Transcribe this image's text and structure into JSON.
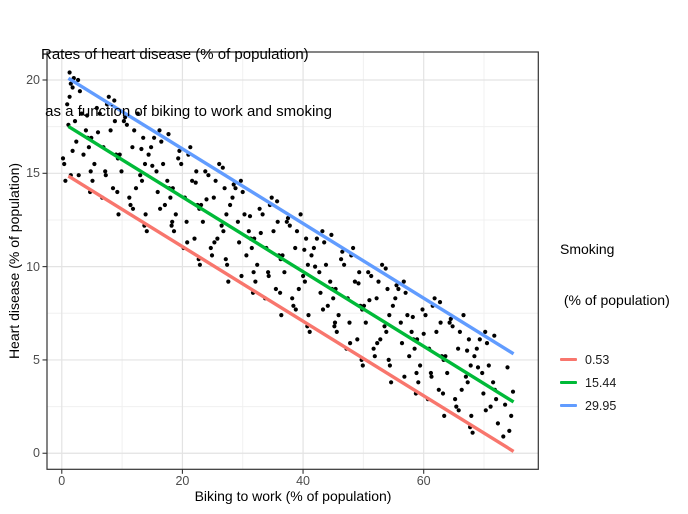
{
  "title": {
    "line1": "Rates of heart disease (% of population)",
    "line2": " as a function of biking to work and smoking"
  },
  "axes": {
    "x": {
      "label": "Biking to work (% of population)"
    },
    "y": {
      "label": "Heart disease (% of population)"
    }
  },
  "legend": {
    "title_line1": "Smoking",
    "title_line2": " (% of population)",
    "position": "right",
    "items": [
      {
        "label": "0.53",
        "color": "#F8766D"
      },
      {
        "label": "15.44",
        "color": "#00BA38"
      },
      {
        "label": "29.95",
        "color": "#619CFF"
      }
    ]
  },
  "colors": {
    "point": "#000000",
    "grid_major": "#E3E3E3",
    "grid_minor": "#F0F0F0",
    "panel_border": "#333333",
    "tick": "#333333",
    "tick_text": "#4d4d4d"
  },
  "chart_data": {
    "type": "scatter",
    "title": "Rates of heart disease (% of population) as a function of biking to work and smoking",
    "xlabel": "Biking to work (% of population)",
    "ylabel": "Heart disease (% of population)",
    "xlim": [
      -2.45,
      79.0
    ],
    "ylim": [
      -0.86,
      21.5
    ],
    "x_major_ticks": [
      0,
      20,
      40,
      60
    ],
    "x_minor_ticks": [
      10,
      30,
      50,
      70
    ],
    "y_major_ticks": [
      0,
      5,
      10,
      15,
      20
    ],
    "y_minor_ticks": [
      2.5,
      7.5,
      12.5,
      17.5
    ],
    "grid": true,
    "point_color": "#000000",
    "regression_lines": [
      {
        "label": "0.53",
        "color": "#F8766D",
        "x1": 1.1,
        "y1": 14.85,
        "x2": 74.9,
        "y2": 0.1
      },
      {
        "label": "15.44",
        "color": "#00BA38",
        "x1": 1.1,
        "y1": 17.51,
        "x2": 74.9,
        "y2": 2.75
      },
      {
        "label": "29.95",
        "color": "#619CFF",
        "x1": 1.1,
        "y1": 20.09,
        "x2": 74.9,
        "y2": 5.33
      }
    ],
    "points": [
      [
        0.6,
        14.6
      ],
      [
        3.3,
        18.2
      ],
      [
        4.5,
        16.4
      ],
      [
        1.8,
        19.6
      ],
      [
        4.0,
        17.3
      ],
      [
        0.4,
        15.5
      ],
      [
        2.7,
        20.0
      ],
      [
        4.3,
        16.9
      ],
      [
        1.3,
        19.1
      ],
      [
        4.8,
        15.1
      ],
      [
        2.2,
        17.8
      ],
      [
        3.6,
        16.0
      ],
      [
        0.9,
        18.7
      ],
      [
        3.0,
        19.4
      ],
      [
        2.4,
        16.7
      ],
      [
        9.0,
        16.0
      ],
      [
        6.3,
        18.2
      ],
      [
        8.5,
        14.2
      ],
      [
        4.9,
        16.9
      ],
      [
        7.2,
        15.1
      ],
      [
        8.8,
        17.8
      ],
      [
        5.8,
        18.5
      ],
      [
        9.3,
        15.8
      ],
      [
        6.7,
        13.7
      ],
      [
        8.1,
        17.3
      ],
      [
        5.4,
        15.5
      ],
      [
        7.5,
        18.7
      ],
      [
        6.9,
        16.4
      ],
      [
        5.1,
        14.6
      ],
      [
        7.8,
        19.1
      ],
      [
        13.0,
        14.9
      ],
      [
        9.4,
        12.8
      ],
      [
        11.7,
        16.4
      ],
      [
        13.3,
        14.6
      ],
      [
        10.3,
        17.8
      ],
      [
        13.8,
        15.5
      ],
      [
        11.2,
        13.7
      ],
      [
        12.6,
        18.2
      ],
      [
        9.9,
        15.1
      ],
      [
        12.0,
        17.3
      ],
      [
        11.4,
        13.3
      ],
      [
        9.6,
        16.0
      ],
      [
        12.3,
        14.2
      ],
      [
        13.5,
        16.9
      ],
      [
        10.8,
        17.6
      ],
      [
        16.2,
        17.3
      ],
      [
        17.8,
        14.2
      ],
      [
        14.8,
        16.4
      ],
      [
        18.3,
        12.4
      ],
      [
        15.7,
        15.1
      ],
      [
        17.1,
        13.3
      ],
      [
        14.4,
        16.0
      ],
      [
        16.5,
        16.7
      ],
      [
        15.9,
        14.0
      ],
      [
        14.1,
        11.9
      ],
      [
        16.8,
        15.5
      ],
      [
        18.0,
        13.7
      ],
      [
        15.3,
        16.9
      ],
      [
        17.5,
        14.6
      ],
      [
        13.9,
        12.8
      ],
      [
        19.3,
        15.8
      ],
      [
        22.8,
        13.1
      ],
      [
        20.2,
        11.0
      ],
      [
        21.6,
        14.6
      ],
      [
        18.9,
        12.8
      ],
      [
        21.0,
        16.0
      ],
      [
        20.4,
        13.7
      ],
      [
        18.6,
        11.9
      ],
      [
        21.3,
        16.4
      ],
      [
        22.5,
        13.3
      ],
      [
        19.8,
        15.5
      ],
      [
        22.0,
        11.5
      ],
      [
        18.4,
        14.2
      ],
      [
        20.7,
        12.4
      ],
      [
        22.3,
        15.1
      ],
      [
        24.7,
        11.0
      ],
      [
        26.1,
        15.5
      ],
      [
        23.4,
        12.4
      ],
      [
        25.5,
        14.6
      ],
      [
        24.9,
        10.6
      ],
      [
        23.1,
        13.3
      ],
      [
        25.8,
        11.5
      ],
      [
        27.0,
        14.2
      ],
      [
        24.3,
        14.9
      ],
      [
        26.5,
        12.2
      ],
      [
        22.9,
        10.1
      ],
      [
        25.2,
        13.7
      ],
      [
        26.8,
        11.9
      ],
      [
        23.8,
        15.1
      ],
      [
        27.3,
        12.8
      ],
      [
        27.9,
        13.3
      ],
      [
        30.0,
        14.0
      ],
      [
        29.4,
        11.3
      ],
      [
        27.6,
        9.2
      ],
      [
        30.3,
        12.8
      ],
      [
        31.5,
        11.0
      ],
      [
        28.8,
        14.2
      ],
      [
        31.0,
        11.9
      ],
      [
        27.4,
        10.1
      ],
      [
        29.7,
        14.6
      ],
      [
        31.3,
        11.5
      ],
      [
        28.3,
        13.7
      ],
      [
        31.8,
        9.7
      ],
      [
        29.2,
        12.4
      ],
      [
        30.6,
        10.6
      ],
      [
        33.9,
        11.0
      ],
      [
        32.1,
        9.2
      ],
      [
        34.8,
        13.7
      ],
      [
        36.0,
        10.6
      ],
      [
        33.3,
        12.8
      ],
      [
        35.5,
        8.8
      ],
      [
        31.9,
        11.5
      ],
      [
        34.2,
        9.7
      ],
      [
        35.8,
        12.4
      ],
      [
        32.8,
        13.1
      ],
      [
        36.3,
        10.4
      ],
      [
        33.7,
        8.3
      ],
      [
        35.1,
        11.9
      ],
      [
        32.4,
        10.1
      ],
      [
        34.5,
        13.3
      ],
      [
        39.3,
        8.8
      ],
      [
        40.5,
        11.5
      ],
      [
        37.8,
        12.2
      ],
      [
        40.0,
        9.5
      ],
      [
        36.4,
        7.4
      ],
      [
        38.7,
        11.0
      ],
      [
        40.3,
        9.2
      ],
      [
        37.3,
        12.4
      ],
      [
        40.8,
        10.1
      ],
      [
        38.2,
        8.3
      ],
      [
        39.6,
        12.8
      ],
      [
        36.9,
        9.7
      ],
      [
        39.0,
        11.9
      ],
      [
        38.4,
        7.9
      ],
      [
        36.6,
        10.6
      ],
      [
        42.3,
        11.5
      ],
      [
        44.5,
        9.2
      ],
      [
        40.9,
        7.4
      ],
      [
        43.2,
        11.9
      ],
      [
        44.8,
        8.8
      ],
      [
        41.8,
        11.0
      ],
      [
        45.3,
        7.0
      ],
      [
        42.7,
        9.7
      ],
      [
        44.1,
        7.9
      ],
      [
        41.4,
        10.6
      ],
      [
        43.5,
        11.3
      ],
      [
        42.9,
        8.6
      ],
      [
        41.1,
        6.5
      ],
      [
        43.8,
        10.1
      ],
      [
        45.0,
        8.3
      ],
      [
        45.4,
        8.8
      ],
      [
        47.7,
        7.0
      ],
      [
        49.3,
        9.7
      ],
      [
        46.3,
        10.4
      ],
      [
        49.8,
        7.7
      ],
      [
        47.2,
        5.6
      ],
      [
        48.6,
        9.2
      ],
      [
        45.9,
        7.4
      ],
      [
        48.0,
        10.6
      ],
      [
        47.4,
        8.3
      ],
      [
        45.6,
        6.5
      ],
      [
        48.3,
        11.0
      ],
      [
        49.5,
        7.9
      ],
      [
        46.8,
        10.1
      ],
      [
        49.0,
        6.1
      ],
      [
        53.8,
        6.5
      ],
      [
        50.8,
        9.7
      ],
      [
        54.3,
        7.4
      ],
      [
        51.7,
        5.6
      ],
      [
        53.1,
        10.1
      ],
      [
        50.4,
        7.0
      ],
      [
        52.5,
        9.2
      ],
      [
        51.9,
        5.2
      ],
      [
        50.1,
        7.9
      ],
      [
        52.8,
        6.1
      ],
      [
        54.0,
        8.8
      ],
      [
        51.3,
        9.5
      ],
      [
        53.5,
        6.8
      ],
      [
        49.9,
        4.7
      ],
      [
        52.2,
        8.3
      ],
      [
        58.8,
        4.3
      ],
      [
        56.2,
        7.0
      ],
      [
        57.6,
        5.2
      ],
      [
        54.9,
        7.9
      ],
      [
        57.0,
        8.6
      ],
      [
        56.4,
        5.9
      ],
      [
        54.6,
        3.8
      ],
      [
        57.3,
        7.4
      ],
      [
        58.5,
        5.6
      ],
      [
        55.8,
        8.8
      ],
      [
        58.0,
        6.5
      ],
      [
        54.4,
        4.7
      ],
      [
        56.7,
        9.2
      ],
      [
        58.3,
        6.1
      ],
      [
        55.3,
        8.3
      ],
      [
        62.1,
        6.5
      ],
      [
        59.4,
        4.7
      ],
      [
        61.5,
        7.9
      ],
      [
        60.9,
        5.6
      ],
      [
        59.1,
        3.8
      ],
      [
        61.8,
        8.3
      ],
      [
        63.0,
        5.2
      ],
      [
        60.3,
        7.4
      ],
      [
        62.5,
        3.4
      ],
      [
        58.9,
        6.1
      ],
      [
        61.2,
        4.3
      ],
      [
        62.8,
        7.0
      ],
      [
        59.8,
        7.7
      ],
      [
        63.3,
        5.0
      ],
      [
        60.7,
        2.9
      ],
      [
        66.0,
        6.5
      ],
      [
        65.4,
        2.5
      ],
      [
        63.6,
        5.2
      ],
      [
        66.3,
        3.4
      ],
      [
        67.5,
        6.1
      ],
      [
        64.8,
        6.8
      ],
      [
        67.0,
        4.1
      ],
      [
        63.4,
        2.0
      ],
      [
        65.7,
        5.6
      ],
      [
        67.3,
        3.8
      ],
      [
        64.3,
        7.0
      ],
      [
        67.8,
        4.7
      ],
      [
        65.2,
        2.9
      ],
      [
        66.6,
        7.4
      ],
      [
        63.9,
        4.3
      ],
      [
        68.1,
        1.1
      ],
      [
        70.8,
        4.7
      ],
      [
        72.0,
        2.9
      ],
      [
        69.3,
        6.1
      ],
      [
        71.5,
        3.8
      ],
      [
        67.9,
        2.0
      ],
      [
        70.2,
        6.5
      ],
      [
        71.8,
        3.4
      ],
      [
        68.8,
        5.6
      ],
      [
        72.3,
        1.6
      ],
      [
        69.7,
        4.3
      ],
      [
        71.1,
        2.5
      ],
      [
        68.4,
        5.2
      ],
      [
        70.5,
        5.9
      ],
      [
        69.9,
        3.2
      ],
      [
        1.5,
        19.8
      ],
      [
        2.8,
        14.9
      ],
      [
        4.2,
        18.1
      ],
      [
        0.2,
        15.8
      ],
      [
        7.3,
        14.9
      ],
      [
        8.7,
        18.9
      ],
      [
        4.7,
        14.0
      ],
      [
        6.0,
        17.2
      ],
      [
        13.2,
        16.3
      ],
      [
        9.2,
        14.0
      ],
      [
        10.5,
        18.0
      ],
      [
        11.8,
        13.1
      ],
      [
        13.7,
        12.2
      ],
      [
        15.0,
        15.4
      ],
      [
        16.3,
        13.1
      ],
      [
        17.7,
        17.1
      ],
      [
        19.5,
        16.2
      ],
      [
        20.8,
        11.3
      ],
      [
        22.2,
        14.5
      ],
      [
        18.2,
        12.2
      ],
      [
        25.3,
        11.3
      ],
      [
        26.7,
        15.3
      ],
      [
        22.7,
        10.4
      ],
      [
        24.0,
        13.6
      ],
      [
        31.2,
        12.7
      ],
      [
        27.2,
        10.4
      ],
      [
        28.5,
        14.4
      ],
      [
        29.8,
        9.5
      ],
      [
        31.7,
        8.6
      ],
      [
        33.0,
        11.8
      ],
      [
        34.3,
        9.5
      ],
      [
        35.7,
        13.5
      ],
      [
        37.5,
        12.6
      ],
      [
        38.8,
        7.7
      ],
      [
        40.2,
        10.9
      ],
      [
        36.2,
        8.6
      ],
      [
        43.3,
        7.7
      ],
      [
        44.7,
        11.7
      ],
      [
        40.7,
        6.8
      ],
      [
        42.0,
        10.0
      ],
      [
        49.2,
        9.1
      ],
      [
        45.2,
        6.8
      ],
      [
        46.5,
        10.8
      ],
      [
        47.8,
        5.9
      ],
      [
        49.7,
        5.0
      ],
      [
        51.0,
        8.2
      ],
      [
        52.3,
        5.9
      ],
      [
        53.7,
        9.9
      ],
      [
        55.5,
        9.0
      ],
      [
        56.8,
        4.1
      ],
      [
        58.2,
        7.3
      ],
      [
        54.2,
        5.0
      ],
      [
        61.3,
        4.1
      ],
      [
        62.7,
        8.1
      ],
      [
        58.7,
        3.2
      ],
      [
        60.0,
        6.4
      ],
      [
        67.2,
        5.5
      ],
      [
        63.2,
        3.2
      ],
      [
        64.5,
        7.2
      ],
      [
        65.8,
        2.3
      ],
      [
        67.7,
        1.4
      ],
      [
        69.0,
        4.6
      ],
      [
        70.3,
        2.3
      ],
      [
        71.7,
        6.3
      ],
      [
        73.5,
        2.6
      ],
      [
        74.2,
        1.2
      ],
      [
        74.8,
        3.3
      ],
      [
        73.9,
        4.6
      ],
      [
        74.5,
        2.0
      ],
      [
        73.2,
        0.9
      ],
      [
        1.3,
        20.4
      ],
      [
        2.0,
        20.1
      ],
      [
        1.1,
        17.6
      ],
      [
        1.8,
        16.2
      ],
      [
        1.5,
        14.9
      ]
    ]
  }
}
